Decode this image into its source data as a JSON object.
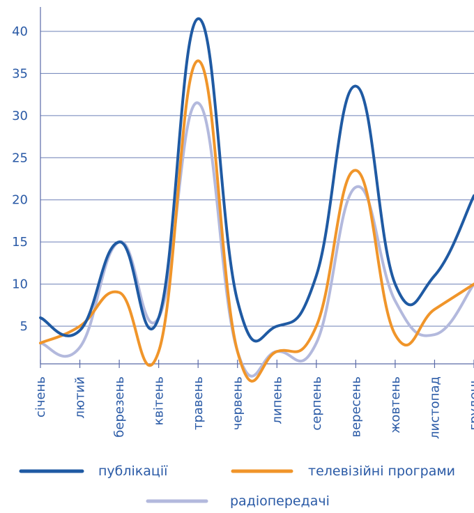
{
  "chart_data": {
    "type": "line",
    "title": "",
    "xlabel": "",
    "ylabel": "",
    "ylim": [
      2,
      43
    ],
    "yticks": [
      5,
      10,
      15,
      20,
      25,
      30,
      35,
      40
    ],
    "grid": true,
    "legend_position": "bottom",
    "categories": [
      "січень",
      "лютий",
      "березень",
      "квітень",
      "травень",
      "червень",
      "липень",
      "серпень",
      "вересень",
      "жовтень",
      "листопад",
      "грудень"
    ],
    "series": [
      {
        "name": "публікації",
        "color": "#1f5aa3",
        "values": [
          6,
          4.5,
          15,
          6,
          41.5,
          8,
          5,
          11,
          33.5,
          10,
          11,
          20.5
        ]
      },
      {
        "name": "телевізійні програми",
        "color": "#f0952a",
        "values": [
          3,
          5,
          9,
          2,
          36.5,
          2,
          2,
          5,
          23.5,
          4,
          7,
          10
        ]
      },
      {
        "name": "радіопередачі",
        "color": "#b3b9dd",
        "values": [
          3,
          2.5,
          15,
          6,
          31.5,
          2,
          2,
          3,
          21.5,
          8,
          4,
          10
        ]
      }
    ]
  }
}
